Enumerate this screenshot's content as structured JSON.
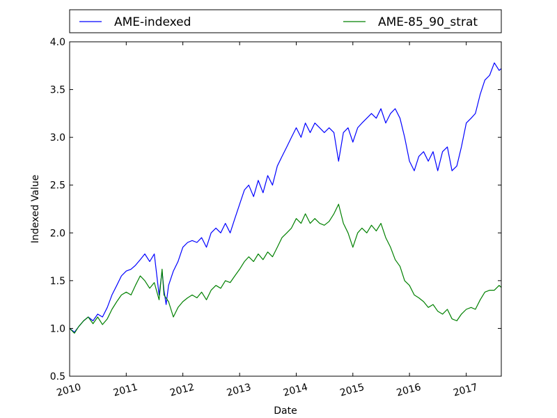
{
  "chart_data": {
    "type": "line",
    "title": "",
    "xlabel": "Date",
    "ylabel": "Indexed Value",
    "xlim": [
      "2010-01-01",
      "2017-08-15"
    ],
    "ylim": [
      0.5,
      4.0
    ],
    "x_tick_labels": [
      "2010",
      "2011",
      "2012",
      "2013",
      "2014",
      "2015",
      "2016",
      "2017"
    ],
    "y_tick_labels": [
      "0.5",
      "1.0",
      "1.5",
      "2.0",
      "2.5",
      "3.0",
      "3.5",
      "4.0"
    ],
    "grid": false,
    "legend_position": "top, above plot, two columns",
    "series": [
      {
        "name": "AME-indexed",
        "color": "#0000ff",
        "points": [
          [
            "2010-01-01",
            1.0
          ],
          [
            "2010-02-01",
            0.96
          ],
          [
            "2010-03-01",
            1.02
          ],
          [
            "2010-04-01",
            1.08
          ],
          [
            "2010-05-01",
            1.12
          ],
          [
            "2010-06-01",
            1.08
          ],
          [
            "2010-07-01",
            1.15
          ],
          [
            "2010-08-01",
            1.12
          ],
          [
            "2010-09-01",
            1.22
          ],
          [
            "2010-10-01",
            1.35
          ],
          [
            "2010-11-01",
            1.45
          ],
          [
            "2010-12-01",
            1.55
          ],
          [
            "2011-01-01",
            1.6
          ],
          [
            "2011-02-01",
            1.62
          ],
          [
            "2011-03-01",
            1.66
          ],
          [
            "2011-04-01",
            1.72
          ],
          [
            "2011-05-01",
            1.78
          ],
          [
            "2011-06-01",
            1.7
          ],
          [
            "2011-07-01",
            1.78
          ],
          [
            "2011-08-01",
            1.35
          ],
          [
            "2011-08-20",
            1.6
          ],
          [
            "2011-09-01",
            1.4
          ],
          [
            "2011-09-15",
            1.25
          ],
          [
            "2011-10-01",
            1.45
          ],
          [
            "2011-11-01",
            1.6
          ],
          [
            "2011-12-01",
            1.7
          ],
          [
            "2012-01-01",
            1.85
          ],
          [
            "2012-02-01",
            1.9
          ],
          [
            "2012-03-01",
            1.92
          ],
          [
            "2012-04-01",
            1.9
          ],
          [
            "2012-05-01",
            1.95
          ],
          [
            "2012-06-01",
            1.85
          ],
          [
            "2012-07-01",
            2.0
          ],
          [
            "2012-08-01",
            2.05
          ],
          [
            "2012-09-01",
            2.0
          ],
          [
            "2012-10-01",
            2.1
          ],
          [
            "2012-11-01",
            2.0
          ],
          [
            "2012-12-01",
            2.15
          ],
          [
            "2013-01-01",
            2.3
          ],
          [
            "2013-02-01",
            2.45
          ],
          [
            "2013-03-01",
            2.5
          ],
          [
            "2013-04-01",
            2.38
          ],
          [
            "2013-05-01",
            2.55
          ],
          [
            "2013-06-01",
            2.42
          ],
          [
            "2013-07-01",
            2.6
          ],
          [
            "2013-08-01",
            2.5
          ],
          [
            "2013-09-01",
            2.7
          ],
          [
            "2013-10-01",
            2.8
          ],
          [
            "2013-11-01",
            2.9
          ],
          [
            "2013-12-01",
            3.0
          ],
          [
            "2014-01-01",
            3.1
          ],
          [
            "2014-02-01",
            3.0
          ],
          [
            "2014-03-01",
            3.15
          ],
          [
            "2014-04-01",
            3.05
          ],
          [
            "2014-05-01",
            3.15
          ],
          [
            "2014-06-01",
            3.1
          ],
          [
            "2014-07-01",
            3.05
          ],
          [
            "2014-08-01",
            3.1
          ],
          [
            "2014-09-01",
            3.05
          ],
          [
            "2014-10-01",
            2.75
          ],
          [
            "2014-11-01",
            3.05
          ],
          [
            "2014-12-01",
            3.1
          ],
          [
            "2015-01-01",
            2.95
          ],
          [
            "2015-02-01",
            3.1
          ],
          [
            "2015-03-01",
            3.15
          ],
          [
            "2015-04-01",
            3.2
          ],
          [
            "2015-05-01",
            3.25
          ],
          [
            "2015-06-01",
            3.2
          ],
          [
            "2015-07-01",
            3.3
          ],
          [
            "2015-08-01",
            3.15
          ],
          [
            "2015-09-01",
            3.25
          ],
          [
            "2015-10-01",
            3.3
          ],
          [
            "2015-11-01",
            3.2
          ],
          [
            "2015-12-01",
            3.0
          ],
          [
            "2016-01-01",
            2.75
          ],
          [
            "2016-02-01",
            2.65
          ],
          [
            "2016-03-01",
            2.8
          ],
          [
            "2016-04-01",
            2.85
          ],
          [
            "2016-05-01",
            2.75
          ],
          [
            "2016-06-01",
            2.85
          ],
          [
            "2016-07-01",
            2.65
          ],
          [
            "2016-08-01",
            2.85
          ],
          [
            "2016-09-01",
            2.9
          ],
          [
            "2016-10-01",
            2.65
          ],
          [
            "2016-11-01",
            2.7
          ],
          [
            "2016-12-01",
            2.9
          ],
          [
            "2017-01-01",
            3.15
          ],
          [
            "2017-02-01",
            3.2
          ],
          [
            "2017-03-01",
            3.25
          ],
          [
            "2017-04-01",
            3.45
          ],
          [
            "2017-05-01",
            3.6
          ],
          [
            "2017-06-01",
            3.65
          ],
          [
            "2017-07-01",
            3.78
          ],
          [
            "2017-08-01",
            3.7
          ],
          [
            "2017-08-15",
            3.72
          ]
        ]
      },
      {
        "name": "AME-85_90_strat",
        "color": "#008000",
        "points": [
          [
            "2010-01-01",
            1.0
          ],
          [
            "2010-02-01",
            0.95
          ],
          [
            "2010-03-01",
            1.02
          ],
          [
            "2010-04-01",
            1.08
          ],
          [
            "2010-05-01",
            1.12
          ],
          [
            "2010-06-01",
            1.05
          ],
          [
            "2010-07-01",
            1.12
          ],
          [
            "2010-08-01",
            1.04
          ],
          [
            "2010-09-01",
            1.1
          ],
          [
            "2010-10-01",
            1.2
          ],
          [
            "2010-11-01",
            1.28
          ],
          [
            "2010-12-01",
            1.35
          ],
          [
            "2011-01-01",
            1.38
          ],
          [
            "2011-02-01",
            1.35
          ],
          [
            "2011-03-01",
            1.45
          ],
          [
            "2011-04-01",
            1.55
          ],
          [
            "2011-05-01",
            1.5
          ],
          [
            "2011-06-01",
            1.42
          ],
          [
            "2011-07-01",
            1.48
          ],
          [
            "2011-08-01",
            1.3
          ],
          [
            "2011-08-20",
            1.62
          ],
          [
            "2011-09-01",
            1.35
          ],
          [
            "2011-10-01",
            1.28
          ],
          [
            "2011-11-01",
            1.12
          ],
          [
            "2011-12-01",
            1.22
          ],
          [
            "2012-01-01",
            1.28
          ],
          [
            "2012-02-01",
            1.32
          ],
          [
            "2012-03-01",
            1.35
          ],
          [
            "2012-04-01",
            1.32
          ],
          [
            "2012-05-01",
            1.38
          ],
          [
            "2012-06-01",
            1.3
          ],
          [
            "2012-07-01",
            1.4
          ],
          [
            "2012-08-01",
            1.45
          ],
          [
            "2012-09-01",
            1.42
          ],
          [
            "2012-10-01",
            1.5
          ],
          [
            "2012-11-01",
            1.48
          ],
          [
            "2012-12-01",
            1.55
          ],
          [
            "2013-01-01",
            1.62
          ],
          [
            "2013-02-01",
            1.7
          ],
          [
            "2013-03-01",
            1.75
          ],
          [
            "2013-04-01",
            1.7
          ],
          [
            "2013-05-01",
            1.78
          ],
          [
            "2013-06-01",
            1.72
          ],
          [
            "2013-07-01",
            1.8
          ],
          [
            "2013-08-01",
            1.75
          ],
          [
            "2013-09-01",
            1.85
          ],
          [
            "2013-10-01",
            1.95
          ],
          [
            "2013-11-01",
            2.0
          ],
          [
            "2013-12-01",
            2.05
          ],
          [
            "2014-01-01",
            2.15
          ],
          [
            "2014-02-01",
            2.1
          ],
          [
            "2014-03-01",
            2.2
          ],
          [
            "2014-04-01",
            2.1
          ],
          [
            "2014-05-01",
            2.15
          ],
          [
            "2014-06-01",
            2.1
          ],
          [
            "2014-07-01",
            2.08
          ],
          [
            "2014-08-01",
            2.12
          ],
          [
            "2014-09-01",
            2.2
          ],
          [
            "2014-10-01",
            2.3
          ],
          [
            "2014-11-01",
            2.1
          ],
          [
            "2014-12-01",
            2.0
          ],
          [
            "2015-01-01",
            1.85
          ],
          [
            "2015-02-01",
            2.0
          ],
          [
            "2015-03-01",
            2.05
          ],
          [
            "2015-04-01",
            2.0
          ],
          [
            "2015-05-01",
            2.08
          ],
          [
            "2015-06-01",
            2.02
          ],
          [
            "2015-07-01",
            2.1
          ],
          [
            "2015-08-01",
            1.95
          ],
          [
            "2015-09-01",
            1.85
          ],
          [
            "2015-10-01",
            1.72
          ],
          [
            "2015-11-01",
            1.65
          ],
          [
            "2015-12-01",
            1.5
          ],
          [
            "2016-01-01",
            1.45
          ],
          [
            "2016-02-01",
            1.35
          ],
          [
            "2016-03-01",
            1.32
          ],
          [
            "2016-04-01",
            1.28
          ],
          [
            "2016-05-01",
            1.22
          ],
          [
            "2016-06-01",
            1.25
          ],
          [
            "2016-07-01",
            1.18
          ],
          [
            "2016-08-01",
            1.15
          ],
          [
            "2016-09-01",
            1.2
          ],
          [
            "2016-10-01",
            1.1
          ],
          [
            "2016-11-01",
            1.08
          ],
          [
            "2016-12-01",
            1.15
          ],
          [
            "2017-01-01",
            1.2
          ],
          [
            "2017-02-01",
            1.22
          ],
          [
            "2017-03-01",
            1.2
          ],
          [
            "2017-04-01",
            1.3
          ],
          [
            "2017-05-01",
            1.38
          ],
          [
            "2017-06-01",
            1.4
          ],
          [
            "2017-07-01",
            1.4
          ],
          [
            "2017-08-01",
            1.45
          ],
          [
            "2017-08-15",
            1.43
          ]
        ]
      }
    ]
  }
}
